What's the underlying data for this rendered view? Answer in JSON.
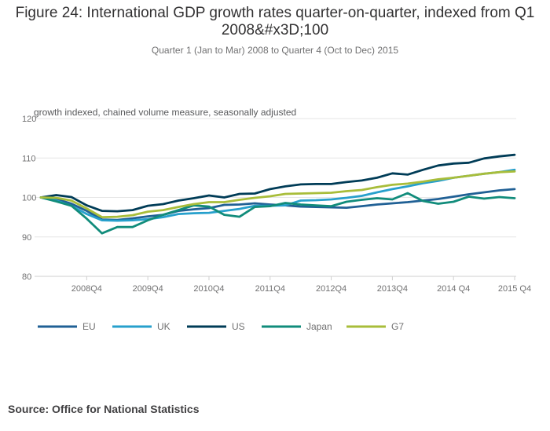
{
  "title": "Figure 24: International GDP growth rates quarter-on-quarter, indexed from Q1 2008&#x3D;100",
  "subtitle": "Quarter 1 (Jan to Mar) 2008 to Quarter 4 (Oct to Dec) 2015",
  "source": "Source: Office for National Statistics",
  "chart_data": {
    "type": "line",
    "ylabel": "growth indexed, chained volume measure, seasonally adjusted",
    "ylim": [
      80,
      120
    ],
    "yticks": [
      80,
      90,
      100,
      110,
      120
    ],
    "x": [
      "2008Q1",
      "2008Q2",
      "2008Q3",
      "2008Q4",
      "2009Q1",
      "2009Q2",
      "2009Q3",
      "2009Q4",
      "2010Q1",
      "2010Q2",
      "2010Q3",
      "2010Q4",
      "2011Q1",
      "2011Q2",
      "2011Q3",
      "2011Q4",
      "2012Q1",
      "2012Q2",
      "2012Q3",
      "2012Q4",
      "2013Q1",
      "2013Q2",
      "2013Q3",
      "2013Q4",
      "2014Q1",
      "2014Q2",
      "2014Q3",
      "2014Q4",
      "2015Q1",
      "2015Q2",
      "2015Q3",
      "2015Q4"
    ],
    "xtick_labels": [
      "2008Q4",
      "2009Q4",
      "2010Q4",
      "2011Q4",
      "2012Q4",
      "2013Q4",
      "2014 Q4",
      "2015 Q4"
    ],
    "xtick_indices": [
      3,
      7,
      11,
      15,
      19,
      23,
      27,
      31
    ],
    "grid": true,
    "legend_position": "bottom",
    "series": [
      {
        "name": "EU",
        "color": "#206095",
        "values": [
          100,
          99.6,
          98.4,
          96.6,
          94.4,
          94.3,
          94.7,
          95.2,
          95.6,
          96.6,
          97.0,
          97.3,
          98.1,
          98.2,
          98.5,
          98.2,
          98.0,
          97.7,
          97.6,
          97.5,
          97.4,
          97.8,
          98.2,
          98.5,
          98.8,
          99.2,
          99.6,
          100.2,
          100.8,
          101.3,
          101.8,
          102.1
        ]
      },
      {
        "name": "UK",
        "color": "#27a0cc",
        "values": [
          100,
          99.2,
          97.9,
          95.8,
          94.2,
          94.1,
          94.2,
          94.5,
          95.0,
          95.8,
          96.0,
          96.1,
          96.6,
          97.1,
          97.9,
          97.9,
          98.0,
          99.2,
          99.3,
          99.5,
          99.9,
          100.4,
          101.3,
          102.1,
          102.8,
          103.6,
          104.2,
          105.0,
          105.5,
          106.0,
          106.4,
          107.0
        ]
      },
      {
        "name": "US",
        "color": "#003c57",
        "values": [
          100,
          100.6,
          100.1,
          98.0,
          96.6,
          96.5,
          96.8,
          97.9,
          98.3,
          99.2,
          99.8,
          100.5,
          100.0,
          100.9,
          101.0,
          102.1,
          102.8,
          103.3,
          103.4,
          103.4,
          103.9,
          104.3,
          105.0,
          106.1,
          105.8,
          107.0,
          108.1,
          108.6,
          108.8,
          109.9,
          110.4,
          110.8
        ]
      },
      {
        "name": "Japan",
        "color": "#118c7b",
        "values": [
          100,
          99.0,
          97.9,
          94.6,
          90.9,
          92.5,
          92.5,
          94.2,
          95.6,
          96.8,
          98.0,
          97.7,
          95.6,
          95.1,
          97.6,
          97.8,
          98.6,
          98.2,
          98.0,
          97.8,
          98.9,
          99.4,
          99.8,
          99.5,
          101.1,
          99.1,
          98.4,
          98.9,
          100.2,
          99.7,
          100.1,
          99.8
        ]
      },
      {
        "name": "G7",
        "color": "#a8bd3a",
        "values": [
          100,
          99.9,
          99.2,
          97.2,
          95.0,
          95.1,
          95.5,
          96.4,
          96.8,
          97.6,
          98.3,
          98.8,
          98.8,
          99.4,
          99.9,
          100.3,
          100.9,
          101.0,
          101.1,
          101.2,
          101.6,
          101.9,
          102.6,
          103.2,
          103.5,
          104.0,
          104.6,
          105.0,
          105.5,
          106.0,
          106.4,
          106.6
        ]
      }
    ]
  }
}
